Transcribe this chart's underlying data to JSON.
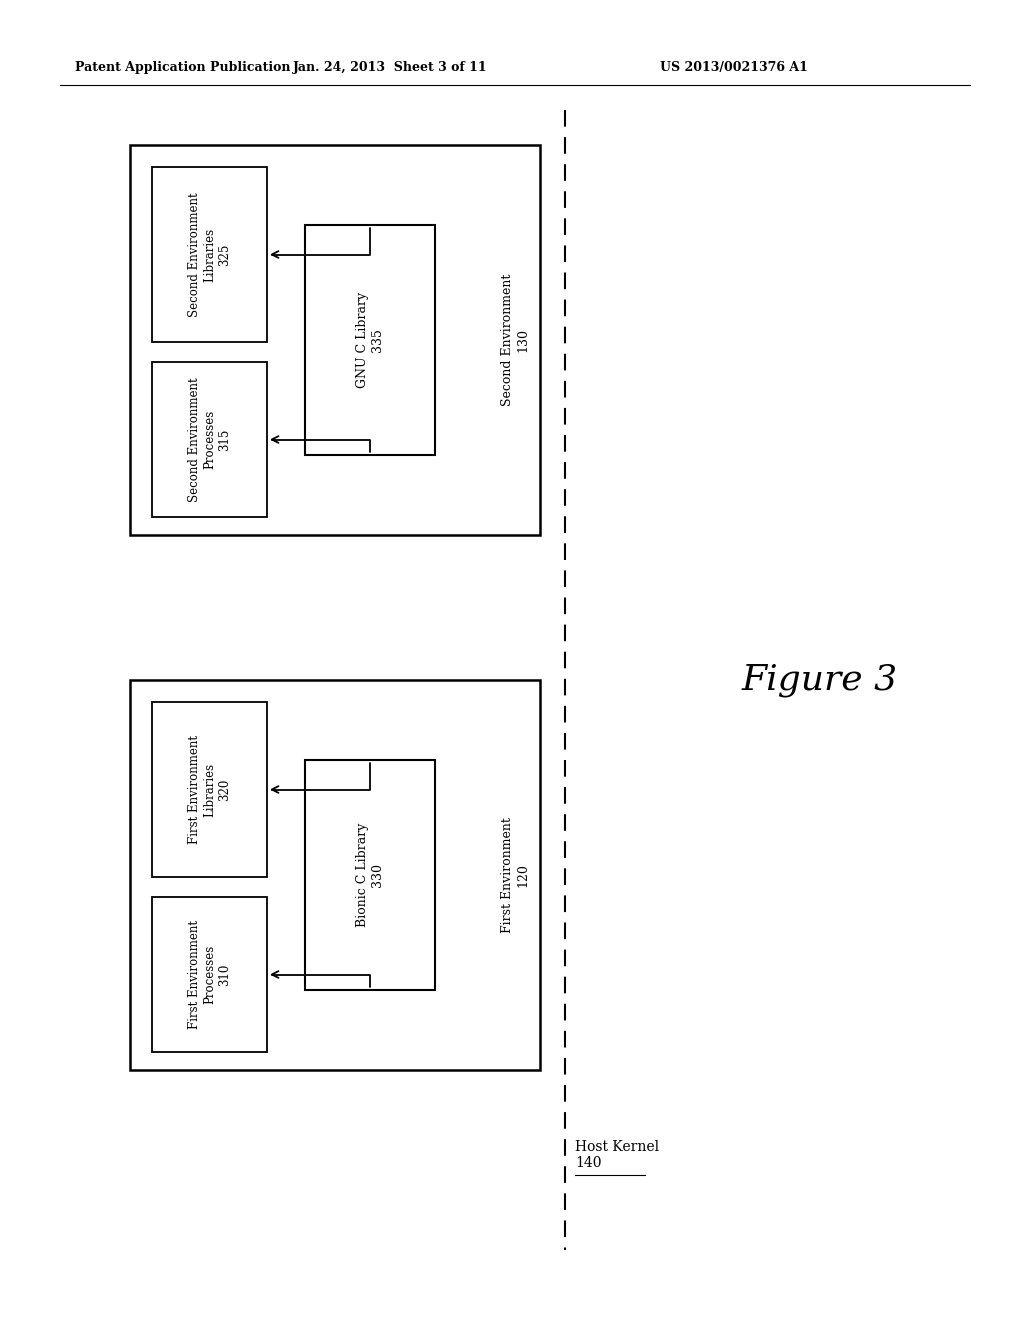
{
  "bg_color": "#ffffff",
  "header_left": "Patent Application Publication",
  "header_mid": "Jan. 24, 2013  Sheet 3 of 11",
  "header_right": "US 2013/0021376 A1",
  "figure_label": "Figure 3",
  "diagram1": {
    "outer_label": "Second Environment\n130",
    "box1_label": "Second Environment\nLibraries\n325",
    "box2_label": "Second Environment\nProcesses\n315",
    "center_box_label": "GNU C Library\n335"
  },
  "diagram2": {
    "outer_label": "First Environment\n120",
    "box1_label": "First Environment\nLibraries\n320",
    "box2_label": "First Environment\nProcesses\n310",
    "center_box_label": "Bionic C Library\n330"
  },
  "host_kernel_label": "Host Kernel\n140",
  "line_color": "#000000",
  "text_color": "#000000"
}
